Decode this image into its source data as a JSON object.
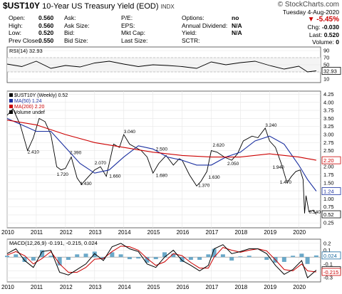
{
  "header": {
    "symbol": "$UST10Y",
    "name": "10-Year US Treasury Yield (EOD)",
    "exchange": "INDX",
    "logo_text": "© StockCharts.com"
  },
  "quote": {
    "left": [
      {
        "label": "Open:",
        "value": "0.560"
      },
      {
        "label": "High:",
        "value": "0.560"
      },
      {
        "label": "Low:",
        "value": "0.520"
      },
      {
        "label": "Prev Close:",
        "value": "0.550"
      }
    ],
    "mid": [
      {
        "label": "Ask:",
        "value": ""
      },
      {
        "label": "Ask Size:",
        "value": ""
      },
      {
        "label": "Bid:",
        "value": ""
      },
      {
        "label": "Bid Size:",
        "value": ""
      }
    ],
    "mid2": [
      {
        "label": "P/E:",
        "value": ""
      },
      {
        "label": "EPS:",
        "value": ""
      },
      {
        "label": "Mkt Cap:",
        "value": ""
      },
      {
        "label": "Last Size:",
        "value": ""
      }
    ],
    "right_labels": [
      {
        "label": "Options:",
        "value": "no"
      },
      {
        "label": "Annual Dividend:",
        "value": "N/A"
      },
      {
        "label": "Yield:",
        "value": "N/A"
      },
      {
        "label": "SCTR:",
        "value": ""
      }
    ],
    "date": "Tuesday  4-Aug-2020",
    "change_pct": "▼ -5.45%",
    "chg_label": "Chg:",
    "chg": "-0.030",
    "last_label": "Last:",
    "last": "0.520",
    "vol_label": "Volume:",
    "vol": "0"
  },
  "chart_data": [
    {
      "type": "line",
      "panel": "RSI",
      "legend": "RSI(14) 32.93",
      "y_ticks": [
        10,
        30,
        50,
        70,
        90
      ],
      "ylim": [
        0,
        100
      ],
      "last_label": "32.93",
      "x": [
        2010.0,
        2010.5,
        2011.0,
        2011.5,
        2012.0,
        2012.5,
        2013.0,
        2013.5,
        2014.0,
        2014.5,
        2015.0,
        2015.5,
        2016.0,
        2016.5,
        2017.0,
        2017.5,
        2018.0,
        2018.5,
        2019.0,
        2019.5,
        2020.0,
        2020.3,
        2020.6
      ],
      "values": [
        52,
        45,
        60,
        40,
        48,
        44,
        55,
        60,
        52,
        45,
        50,
        48,
        45,
        40,
        58,
        50,
        56,
        60,
        48,
        38,
        46,
        30,
        33
      ]
    },
    {
      "type": "line",
      "panel": "price",
      "legend": [
        "$UST10Y (Weekly) 0.52",
        "MA(50) 1.24",
        "MA(200) 2.20",
        "Volume undef"
      ],
      "y_ticks": [
        0.25,
        0.5,
        0.75,
        1.0,
        1.25,
        1.5,
        1.75,
        2.0,
        2.25,
        2.5,
        2.75,
        3.0,
        3.25,
        3.5,
        3.75,
        4.0,
        4.25
      ],
      "ylim": [
        0.1,
        4.35
      ],
      "x_ticks": [
        "2010",
        "2011",
        "2012",
        "2013",
        "2014",
        "2015",
        "2016",
        "2017",
        "2018",
        "2019",
        "2020"
      ],
      "annotations": [
        {
          "x": 2010.7,
          "y": 2.41,
          "text": "2.410"
        },
        {
          "x": 2011.7,
          "y": 1.72,
          "text": "1.720"
        },
        {
          "x": 2012.15,
          "y": 2.39,
          "text": "2.390"
        },
        {
          "x": 2012.5,
          "y": 1.43,
          "text": "1.430"
        },
        {
          "x": 2013.0,
          "y": 2.07,
          "text": "2.070"
        },
        {
          "x": 2013.5,
          "y": 1.66,
          "text": "1.660"
        },
        {
          "x": 2014.0,
          "y": 3.04,
          "text": "3.040"
        },
        {
          "x": 2015.1,
          "y": 2.5,
          "text": "2.500"
        },
        {
          "x": 2015.1,
          "y": 1.68,
          "text": "1.680"
        },
        {
          "x": 2016.55,
          "y": 1.37,
          "text": "1.370"
        },
        {
          "x": 2016.9,
          "y": 1.63,
          "text": "1.630"
        },
        {
          "x": 2017.05,
          "y": 2.62,
          "text": "2.620"
        },
        {
          "x": 2017.55,
          "y": 2.05,
          "text": "2.050"
        },
        {
          "x": 2018.85,
          "y": 3.24,
          "text": "3.240"
        },
        {
          "x": 2019.1,
          "y": 1.94,
          "text": "1.940"
        },
        {
          "x": 2019.35,
          "y": 1.47,
          "text": "1.470"
        },
        {
          "x": 2020.35,
          "y": 0.54,
          "text": "0.540"
        }
      ],
      "right_labels": [
        {
          "value": 2.2,
          "text": "2.20",
          "color": "#cc0000"
        },
        {
          "value": 1.24,
          "text": "1.24",
          "color": "#1a2fa0"
        },
        {
          "value": 0.52,
          "text": "0.52",
          "color": "#000000"
        }
      ],
      "series": [
        {
          "name": "$UST10Y (Weekly) 0.52",
          "color": "#000000",
          "x": [
            2010.0,
            2010.2,
            2010.45,
            2010.7,
            2010.9,
            2011.1,
            2011.3,
            2011.5,
            2011.7,
            2011.85,
            2012.0,
            2012.2,
            2012.4,
            2012.55,
            2012.8,
            2013.0,
            2013.2,
            2013.4,
            2013.65,
            2013.85,
            2014.0,
            2014.2,
            2014.4,
            2014.6,
            2014.8,
            2015.0,
            2015.2,
            2015.45,
            2015.7,
            2015.9,
            2016.0,
            2016.25,
            2016.5,
            2016.65,
            2016.85,
            2017.0,
            2017.2,
            2017.45,
            2017.7,
            2017.9,
            2018.1,
            2018.4,
            2018.6,
            2018.85,
            2019.0,
            2019.2,
            2019.4,
            2019.6,
            2019.75,
            2019.9,
            2020.05,
            2020.15,
            2020.2,
            2020.25,
            2020.35,
            2020.5,
            2020.6
          ],
          "y": [
            3.6,
            3.8,
            3.3,
            2.5,
            2.9,
            3.5,
            3.4,
            3.0,
            2.0,
            1.9,
            1.95,
            2.3,
            1.65,
            1.45,
            1.7,
            1.9,
            2.0,
            1.7,
            2.7,
            2.6,
            3.0,
            2.7,
            2.6,
            2.5,
            2.3,
            1.8,
            2.1,
            2.35,
            2.05,
            2.25,
            2.2,
            1.75,
            1.4,
            1.55,
            1.85,
            2.5,
            2.45,
            2.3,
            2.2,
            2.4,
            2.8,
            2.95,
            2.9,
            3.2,
            2.8,
            2.6,
            2.1,
            1.5,
            1.7,
            1.85,
            1.9,
            1.6,
            0.55,
            1.1,
            0.6,
            0.65,
            0.52
          ]
        },
        {
          "name": "MA(50) 1.24",
          "color": "#1a2fa0",
          "x": [
            2010.0,
            2010.5,
            2011.0,
            2011.5,
            2012.0,
            2012.5,
            2013.0,
            2013.5,
            2014.0,
            2014.5,
            2015.0,
            2015.5,
            2016.0,
            2016.5,
            2017.0,
            2017.5,
            2018.0,
            2018.5,
            2019.0,
            2019.5,
            2020.0,
            2020.3,
            2020.6
          ],
          "y": [
            3.5,
            3.3,
            3.1,
            3.1,
            2.6,
            2.1,
            1.8,
            1.9,
            2.3,
            2.65,
            2.55,
            2.3,
            2.2,
            2.05,
            2.05,
            2.3,
            2.45,
            2.8,
            2.95,
            2.7,
            2.05,
            1.6,
            1.24
          ]
        },
        {
          "name": "MA(200) 2.20",
          "color": "#cc0000",
          "x": [
            2010.0,
            2011.0,
            2012.0,
            2013.0,
            2014.0,
            2015.0,
            2016.0,
            2017.0,
            2018.0,
            2019.0,
            2020.0,
            2020.6
          ],
          "y": [
            3.45,
            3.3,
            3.0,
            2.75,
            2.6,
            2.45,
            2.35,
            2.3,
            2.3,
            2.4,
            2.3,
            2.2
          ]
        }
      ]
    },
    {
      "type": "line",
      "panel": "MACD",
      "legend": [
        "MACD(12,26,9) -0.191, -0.215, 0.024"
      ],
      "y_ticks": [
        -0.3,
        -0.2,
        -0.1,
        0.0,
        0.1,
        0.2
      ],
      "ylim": [
        -0.36,
        0.26
      ],
      "x_ticks": [
        "2010",
        "2011",
        "2012",
        "2013",
        "2014",
        "2015",
        "2016",
        "2017",
        "2018",
        "2019",
        "2020"
      ],
      "right_labels": [
        {
          "value": 0.024,
          "text": "0.024",
          "color": "#1a6aa0"
        },
        {
          "value": -0.191,
          "text": "-0.191",
          "color": "#000000"
        },
        {
          "value": -0.215,
          "text": "-0.215",
          "color": "#cc0000"
        }
      ],
      "series": [
        {
          "name": "MACD",
          "color": "#000000",
          "x": [
            2010.0,
            2010.3,
            2010.6,
            2010.9,
            2011.2,
            2011.5,
            2011.8,
            2012.1,
            2012.4,
            2012.7,
            2013.0,
            2013.3,
            2013.6,
            2013.9,
            2014.2,
            2014.5,
            2014.8,
            2015.1,
            2015.4,
            2015.7,
            2016.0,
            2016.3,
            2016.6,
            2016.9,
            2017.1,
            2017.4,
            2017.7,
            2018.0,
            2018.3,
            2018.6,
            2018.9,
            2019.2,
            2019.5,
            2019.8,
            2020.1,
            2020.3,
            2020.6
          ],
          "y": [
            0.05,
            0.12,
            -0.05,
            -0.15,
            0.08,
            0.1,
            -0.22,
            -0.26,
            -0.18,
            -0.1,
            0.05,
            -0.05,
            0.15,
            0.2,
            0.12,
            0.08,
            -0.1,
            -0.15,
            0.0,
            0.1,
            -0.05,
            -0.12,
            -0.2,
            -0.12,
            0.12,
            0.18,
            0.05,
            0.08,
            0.12,
            0.12,
            0.05,
            -0.12,
            -0.25,
            -0.18,
            -0.05,
            -0.3,
            -0.19
          ]
        },
        {
          "name": "Signal",
          "color": "#cc0000",
          "x": [
            2010.0,
            2010.3,
            2010.6,
            2010.9,
            2011.2,
            2011.5,
            2011.8,
            2012.1,
            2012.4,
            2012.7,
            2013.0,
            2013.3,
            2013.6,
            2013.9,
            2014.2,
            2014.5,
            2014.8,
            2015.1,
            2015.4,
            2015.7,
            2016.0,
            2016.3,
            2016.6,
            2016.9,
            2017.1,
            2017.4,
            2017.7,
            2018.0,
            2018.3,
            2018.6,
            2018.9,
            2019.2,
            2019.5,
            2019.8,
            2020.1,
            2020.3,
            2020.6
          ],
          "y": [
            0.03,
            0.08,
            0.02,
            -0.1,
            -0.02,
            0.08,
            -0.1,
            -0.22,
            -0.22,
            -0.15,
            -0.03,
            -0.02,
            0.08,
            0.16,
            0.15,
            0.1,
            -0.02,
            -0.12,
            -0.07,
            0.05,
            0.02,
            -0.08,
            -0.16,
            -0.16,
            0.0,
            0.14,
            0.1,
            0.07,
            0.1,
            0.12,
            0.09,
            -0.04,
            -0.18,
            -0.2,
            -0.1,
            -0.2,
            -0.215
          ]
        },
        {
          "name": "Histogram",
          "color": "#1a6aa0",
          "x": [
            2010.0,
            2010.3,
            2010.6,
            2010.9,
            2011.2,
            2011.5,
            2011.8,
            2012.1,
            2012.4,
            2012.7,
            2013.0,
            2013.3,
            2013.6,
            2013.9,
            2014.2,
            2014.5,
            2014.8,
            2015.1,
            2015.4,
            2015.7,
            2016.0,
            2016.3,
            2016.6,
            2016.9,
            2017.1,
            2017.4,
            2017.7,
            2018.0,
            2018.3,
            2018.6,
            2018.9,
            2019.2,
            2019.5,
            2019.8,
            2020.1,
            2020.3,
            2020.6
          ],
          "y": [
            0.02,
            0.04,
            -0.07,
            -0.05,
            0.1,
            0.02,
            -0.12,
            -0.04,
            0.04,
            0.05,
            0.08,
            -0.03,
            0.07,
            0.04,
            -0.03,
            -0.02,
            -0.08,
            -0.03,
            0.07,
            0.05,
            -0.07,
            -0.04,
            -0.04,
            0.04,
            0.12,
            0.04,
            -0.05,
            0.01,
            0.02,
            0.0,
            -0.04,
            -0.08,
            -0.07,
            0.02,
            0.05,
            -0.1,
            0.024
          ]
        }
      ]
    }
  ]
}
